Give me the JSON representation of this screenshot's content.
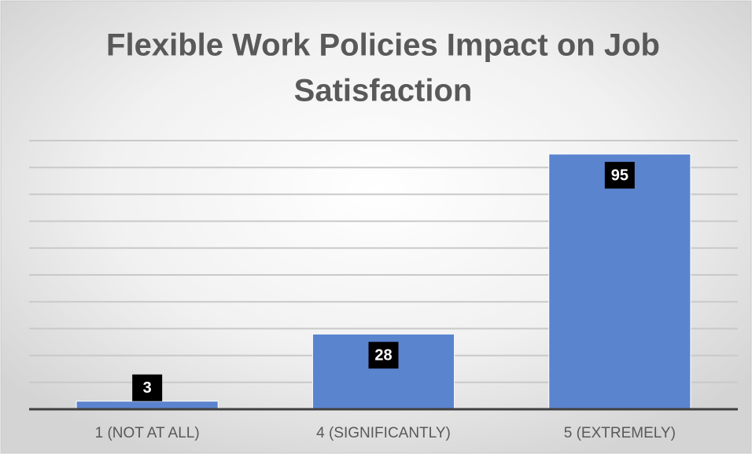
{
  "chart_data": {
    "type": "bar",
    "title": [
      "Flexible Work Policies Impact on Job",
      "Satisfaction"
    ],
    "categories": [
      "1 (NOT AT ALL)",
      "4 (SIGNIFICANTLY)",
      "5 (EXTREMELY)"
    ],
    "values": [
      3,
      28,
      95
    ],
    "color": "#5b84cf",
    "ylim": [
      0,
      100
    ],
    "yticks": [
      0,
      10,
      20,
      30,
      40,
      50,
      60,
      70,
      80,
      90,
      100
    ],
    "grid": true
  }
}
